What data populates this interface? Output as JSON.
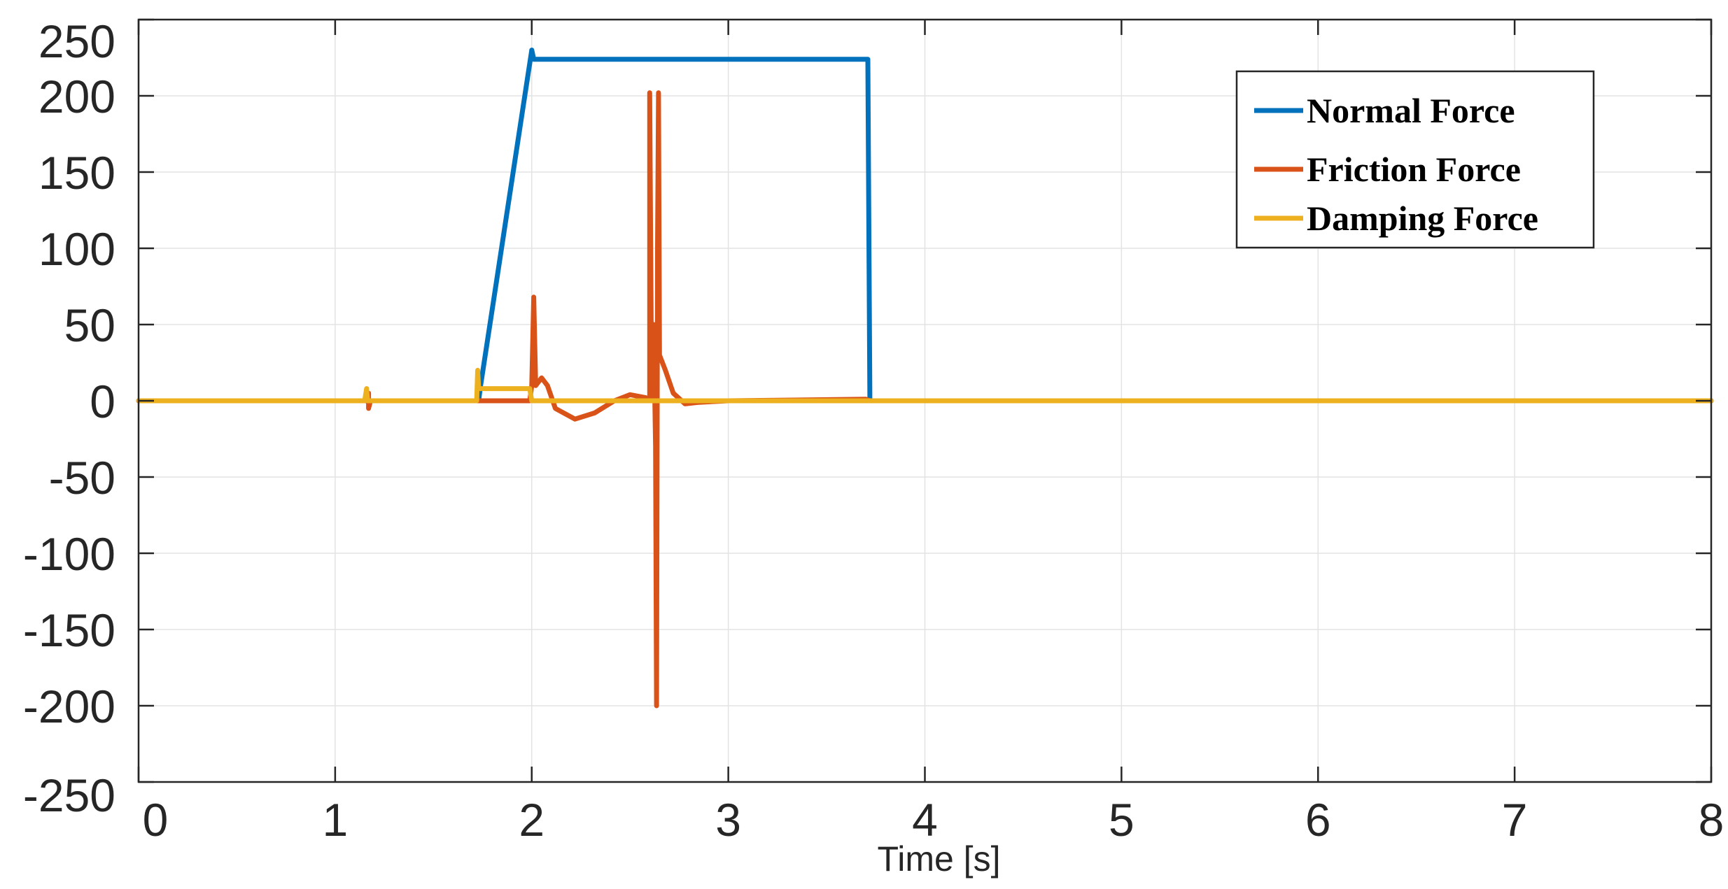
{
  "chart_data": {
    "type": "line",
    "title": "",
    "xlabel": "Time [s]",
    "ylabel": "",
    "xlim": [
      0,
      8
    ],
    "ylim": [
      -250,
      250
    ],
    "xticks": [
      0,
      1,
      2,
      3,
      4,
      5,
      6,
      7,
      8
    ],
    "xtick_labels": [
      "0",
      "1",
      "2",
      "3",
      "4",
      "5",
      "6",
      "7",
      "8"
    ],
    "yticks": [
      -250,
      -200,
      -150,
      -100,
      -50,
      0,
      50,
      100,
      150,
      200,
      250
    ],
    "ytick_labels": [
      "-250",
      "-200",
      "-150",
      "-100",
      "-50",
      "0",
      "50",
      "100",
      "150",
      "200",
      "250"
    ],
    "grid": true,
    "legend_position": "top-right",
    "series": [
      {
        "name": "Normal Force",
        "color": "#0072BD",
        "points": [
          [
            0,
            0
          ],
          [
            1.73,
            0
          ],
          [
            1.74,
            10
          ],
          [
            2.0,
            230
          ],
          [
            2.01,
            224
          ],
          [
            3.71,
            224
          ],
          [
            3.72,
            0
          ],
          [
            8,
            0
          ]
        ]
      },
      {
        "name": "Friction Force",
        "color": "#D95319",
        "points": [
          [
            0,
            0
          ],
          [
            1.16,
            0
          ],
          [
            1.17,
            5
          ],
          [
            1.17,
            -5
          ],
          [
            1.18,
            0
          ],
          [
            1.99,
            0
          ],
          [
            2.0,
            10
          ],
          [
            2.01,
            68
          ],
          [
            2.02,
            10
          ],
          [
            2.05,
            15
          ],
          [
            2.08,
            10
          ],
          [
            2.12,
            -5
          ],
          [
            2.22,
            -12
          ],
          [
            2.32,
            -8
          ],
          [
            2.42,
            0
          ],
          [
            2.5,
            4
          ],
          [
            2.58,
            2
          ],
          [
            2.6,
            0
          ],
          [
            2.6,
            202
          ],
          [
            2.61,
            0
          ],
          [
            2.62,
            50
          ],
          [
            2.63,
            -30
          ],
          [
            2.635,
            -200
          ],
          [
            2.64,
            100
          ],
          [
            2.645,
            202
          ],
          [
            2.65,
            30
          ],
          [
            2.68,
            20
          ],
          [
            2.72,
            5
          ],
          [
            2.78,
            -2
          ],
          [
            2.85,
            -1
          ],
          [
            3.0,
            0
          ],
          [
            3.7,
            1
          ],
          [
            3.72,
            0
          ],
          [
            8,
            0
          ]
        ]
      },
      {
        "name": "Damping Force",
        "color": "#EDB120",
        "points": [
          [
            0,
            0
          ],
          [
            1.15,
            0
          ],
          [
            1.16,
            8
          ],
          [
            1.165,
            0
          ],
          [
            1.72,
            0
          ],
          [
            1.725,
            20
          ],
          [
            1.73,
            8
          ],
          [
            1.99,
            8
          ],
          [
            2.0,
            0
          ],
          [
            8,
            0
          ]
        ]
      }
    ]
  }
}
